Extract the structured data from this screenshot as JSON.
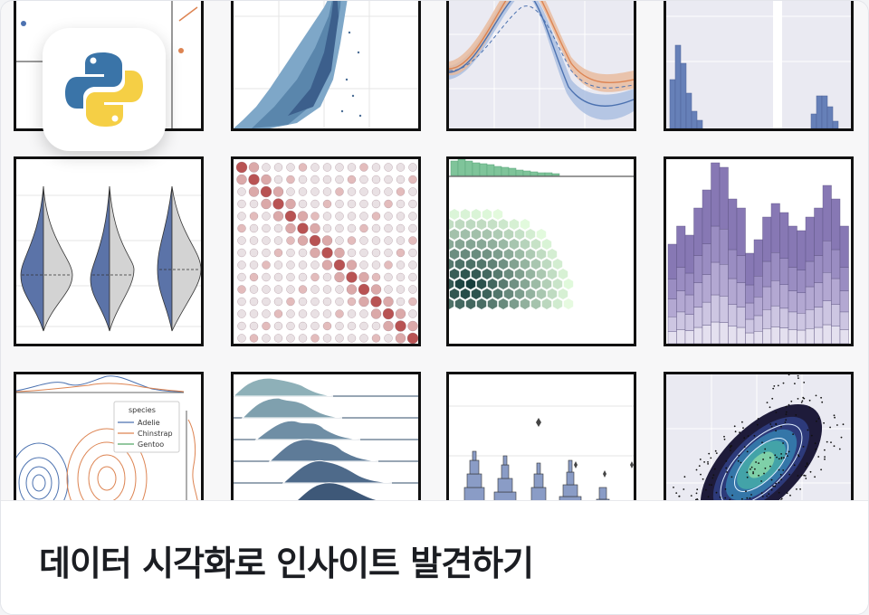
{
  "card": {
    "title": "데이터 시각화로 인사이트 발견하기"
  },
  "logo": {
    "icon": "python-logo-icon"
  },
  "thumbnails": [
    "scatter-plot",
    "density-scatter",
    "line-band-plot",
    "histogram",
    "violin-plot",
    "dot-matrix",
    "hexbin-jointplot",
    "stacked-histogram",
    "kde-contour-plot",
    "ridge-plot",
    "boxen-plot",
    "density-heatmap"
  ],
  "legend": {
    "title": "species",
    "items": [
      "Adelie",
      "Chinstrap",
      "Gentoo"
    ],
    "colors": [
      "#4c72b0",
      "#dd8452",
      "#55a868"
    ]
  },
  "colors": {
    "footer_bg": "#ffffff",
    "title": "#1b1d22",
    "python_blue": "#3a74a8",
    "python_yellow": "#f5cf45"
  }
}
